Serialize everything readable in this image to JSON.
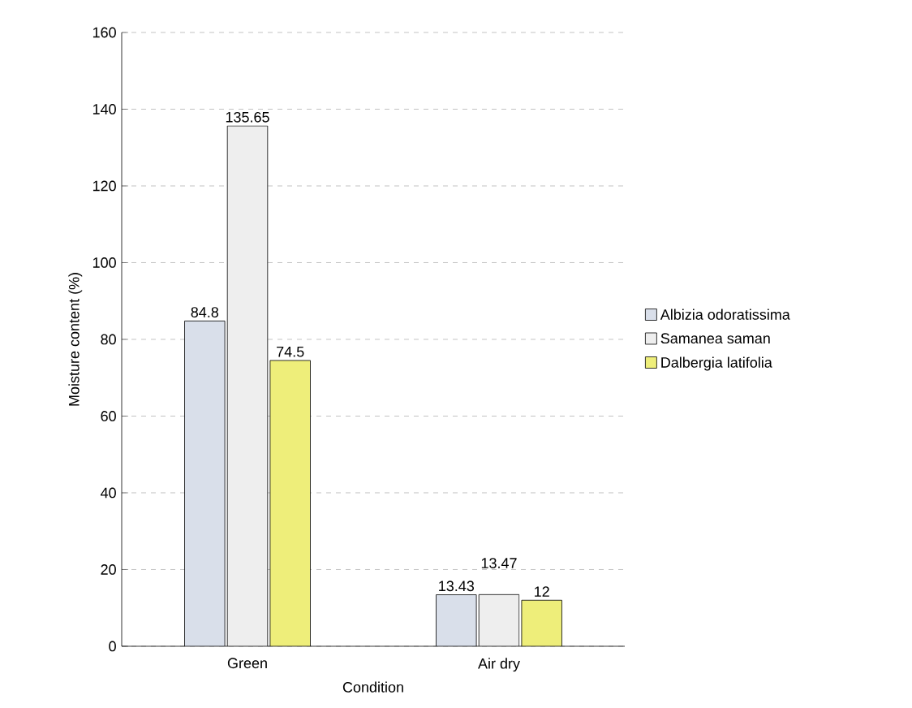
{
  "chart_data": {
    "type": "bar",
    "xlabel": "Condition",
    "ylabel": "Moisture content (%)",
    "categories": [
      "Green",
      "Air dry"
    ],
    "series": [
      {
        "name": "Albizia odoratissima",
        "color": "#d9dfea",
        "values": [
          84.8,
          13.43
        ]
      },
      {
        "name": "Samanea saman",
        "color": "#eeeeee",
        "values": [
          135.65,
          13.47
        ]
      },
      {
        "name": "Dalbergia latifolia",
        "color": "#eeee7a",
        "values": [
          74.5,
          12
        ]
      }
    ],
    "ylim": [
      0,
      160
    ],
    "yticks": [
      0,
      20,
      40,
      60,
      80,
      100,
      120,
      140,
      160
    ],
    "grid": "y",
    "legend": "right",
    "data_labels": true
  }
}
